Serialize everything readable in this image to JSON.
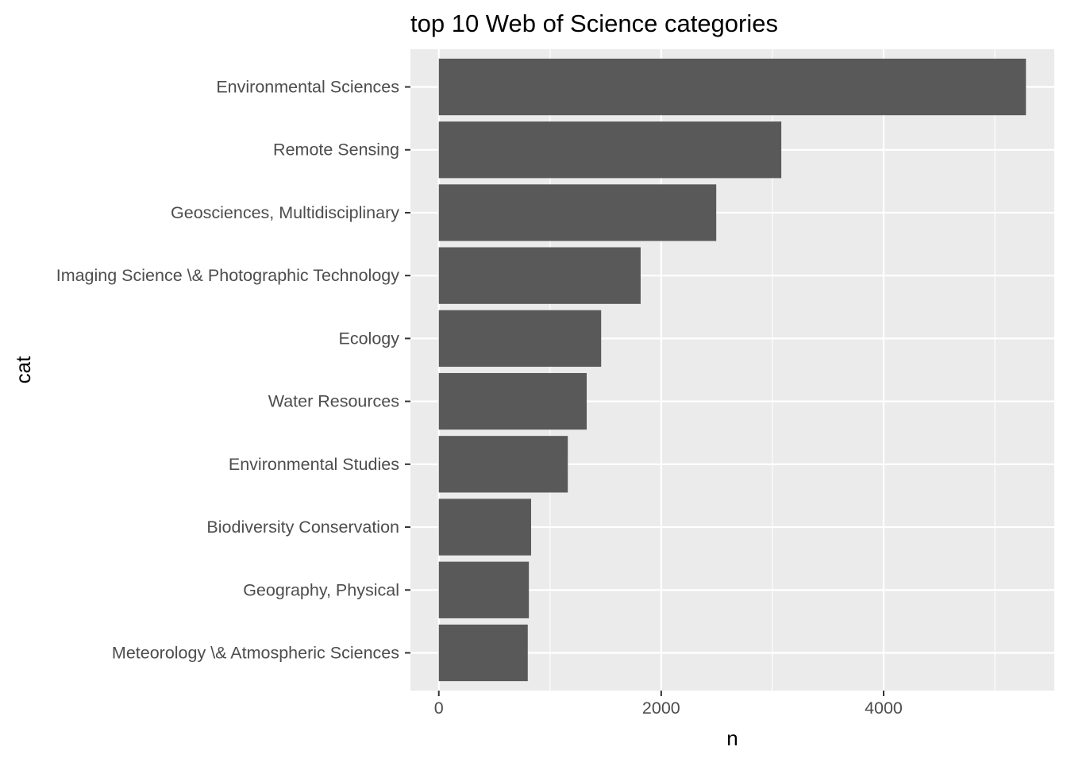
{
  "chart_data": {
    "type": "bar",
    "orientation": "horizontal",
    "title": "top 10 Web of Science categories",
    "xlabel": "n",
    "ylabel": "cat",
    "categories": [
      "Environmental Sciences",
      "Remote Sensing",
      "Geosciences, Multidisciplinary",
      "Imaging Science \\& Photographic Technology",
      "Ecology",
      "Water Resources",
      "Environmental Studies",
      "Biodiversity Conservation",
      "Geography, Physical",
      "Meteorology \\& Atmospheric Sciences"
    ],
    "values": [
      5280,
      3080,
      2495,
      1815,
      1460,
      1330,
      1160,
      830,
      810,
      800
    ],
    "x_ticks": [
      0,
      2000,
      4000
    ],
    "xlim": [
      -255,
      5535
    ],
    "grid": true,
    "legend": "none",
    "colors": {
      "bar": "#595959",
      "panel_background": "#ebebeb",
      "grid_line": "#ffffff",
      "tick_label": "#4d4d4d",
      "axis_tick": "#333333",
      "text": "#000000"
    }
  }
}
